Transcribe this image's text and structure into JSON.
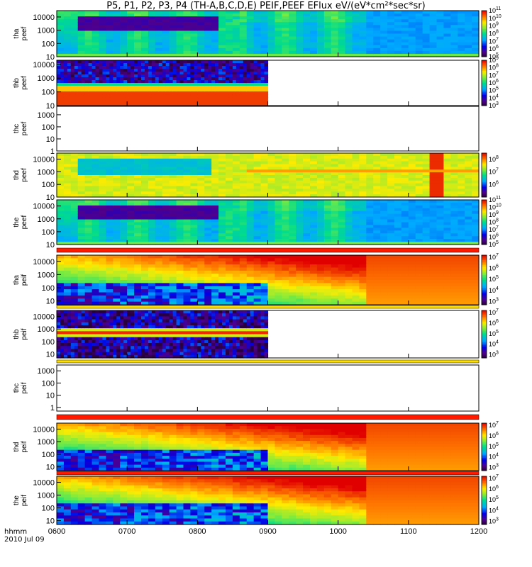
{
  "title": "P5, P1, P2, P3, P4 (TH-A,B,C,D,E) PEIF,PEEF EFlux eV/(eV*cm²*sec*sr)",
  "time_axis": {
    "unit_label": "hhmm",
    "date_label": "2010 Jul 09",
    "ticks": [
      "0600",
      "0700",
      "0800",
      "0900",
      "1000",
      "1100",
      "1200"
    ],
    "range": [
      "06:00",
      "12:00"
    ]
  },
  "chart_data": [
    {
      "type": "heatmap",
      "probe": "tha",
      "ylabel": [
        "tha",
        "peef"
      ],
      "ylog": true,
      "yticks": [
        "10",
        "100",
        "1000",
        "10000"
      ],
      "ylim": [
        10,
        30000
      ],
      "colorbar": {
        "ticks": [
          "10^5",
          "10^6",
          "10^7",
          "10^8",
          "10^9",
          "10^10",
          "10^11"
        ],
        "range_exp": [
          5,
          11
        ]
      },
      "coverage": [
        "06:00",
        "12:00"
      ],
      "pattern": "electron"
    },
    {
      "type": "heatmap",
      "probe": "thb",
      "ylabel": [
        "thb",
        "peef"
      ],
      "ylog": true,
      "yticks": [
        "10",
        "100",
        "1000",
        "10000"
      ],
      "ylim": [
        10,
        20000
      ],
      "colorbar": {
        "ticks": [
          "10^3",
          "10^4",
          "10^5",
          "10^6",
          "10^7",
          "10^8",
          "10^9"
        ],
        "range_exp": [
          3,
          9
        ]
      },
      "coverage": [
        "06:00",
        "09:00"
      ],
      "pattern": "bands_peef"
    },
    {
      "type": "heatmap",
      "probe": "thc",
      "ylabel": [
        "thc",
        "peef"
      ],
      "ylog": true,
      "yticks": [
        "1",
        "10",
        "100",
        "1000"
      ],
      "ylim": [
        1,
        5000
      ],
      "colorbar": null,
      "coverage": null,
      "pattern": "empty"
    },
    {
      "type": "heatmap",
      "probe": "thd",
      "ylabel": [
        "thd",
        "peef"
      ],
      "ylog": true,
      "yticks": [
        "10",
        "100",
        "1000",
        "10000"
      ],
      "ylim": [
        10,
        30000
      ],
      "colorbar": {
        "ticks": [
          "10^6",
          "10^7",
          "10^8"
        ],
        "range_exp": [
          5,
          8.5
        ]
      },
      "coverage": [
        "06:00",
        "12:00"
      ],
      "pattern": "electron_hot"
    },
    {
      "type": "heatmap",
      "probe": "the",
      "ylabel": [
        "the",
        "peef"
      ],
      "ylog": true,
      "yticks": [
        "10",
        "100",
        "1000",
        "10000"
      ],
      "ylim": [
        10,
        30000
      ],
      "colorbar": {
        "ticks": [
          "10^5",
          "10^6",
          "10^7",
          "10^8",
          "10^9",
          "10^10",
          "10^11"
        ],
        "range_exp": [
          5,
          11
        ]
      },
      "coverage": [
        "06:00",
        "12:00"
      ],
      "pattern": "electron"
    },
    {
      "type": "heatmap",
      "probe": "tha",
      "ylabel": [
        "tha",
        "peif"
      ],
      "ylog": true,
      "yticks": [
        "10",
        "100",
        "1000",
        "10000"
      ],
      "ylim": [
        5,
        30000
      ],
      "colorbar": {
        "ticks": [
          "10^3",
          "10^4",
          "10^5",
          "10^6",
          "10^7"
        ],
        "range_exp": [
          2.7,
          7.2
        ]
      },
      "coverage": [
        "06:00",
        "12:00"
      ],
      "pattern": "ion"
    },
    {
      "type": "heatmap",
      "probe": "thb",
      "ylabel": [
        "thb",
        "peif"
      ],
      "ylog": true,
      "yticks": [
        "10",
        "100",
        "1000",
        "10000"
      ],
      "ylim": [
        5,
        30000
      ],
      "colorbar": {
        "ticks": [
          "10^3",
          "10^4",
          "10^5",
          "10^6",
          "10^7"
        ],
        "range_exp": [
          2.7,
          7.2
        ]
      },
      "coverage": [
        "06:00",
        "09:00"
      ],
      "pattern": "bands_peif"
    },
    {
      "type": "heatmap",
      "probe": "thc",
      "ylabel": [
        "thc",
        "peif"
      ],
      "ylog": true,
      "yticks": [
        "1",
        "10",
        "100",
        "1000"
      ],
      "ylim": [
        0.5,
        3000
      ],
      "colorbar": null,
      "coverage": null,
      "pattern": "empty"
    },
    {
      "type": "heatmap",
      "probe": "thd",
      "ylabel": [
        "thd",
        "peif"
      ],
      "ylog": true,
      "yticks": [
        "10",
        "100",
        "1000",
        "10000"
      ],
      "ylim": [
        5,
        30000
      ],
      "colorbar": {
        "ticks": [
          "10^3",
          "10^4",
          "10^5",
          "10^6",
          "10^7"
        ],
        "range_exp": [
          2.7,
          7.2
        ]
      },
      "coverage": [
        "06:00",
        "12:00"
      ],
      "pattern": "ion"
    },
    {
      "type": "heatmap",
      "probe": "the",
      "ylabel": [
        "the",
        "peif"
      ],
      "ylog": true,
      "yticks": [
        "10",
        "100",
        "1000",
        "10000"
      ],
      "ylim": [
        5,
        30000
      ],
      "colorbar": {
        "ticks": [
          "10^3",
          "10^4",
          "10^5",
          "10^6",
          "10^7"
        ],
        "range_exp": [
          2.7,
          7.2
        ]
      },
      "coverage": [
        "06:00",
        "12:00"
      ],
      "pattern": "ion"
    }
  ]
}
